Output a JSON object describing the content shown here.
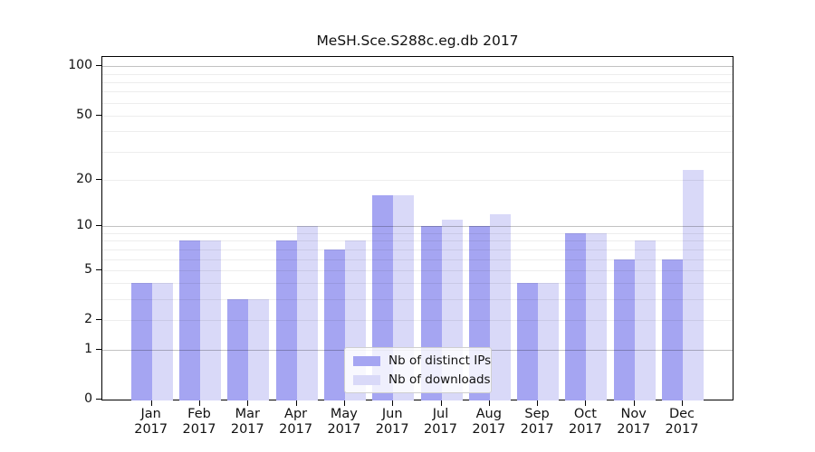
{
  "figure": {
    "title": "MeSH.Sce.S288c.eg.db 2017",
    "background_color": "#ffffff",
    "axis_color": "#000000"
  },
  "chart_data": {
    "type": "bar",
    "title": "MeSH.Sce.S288c.eg.db 2017",
    "categories": [
      "Jan",
      "Feb",
      "Mar",
      "Apr",
      "May",
      "Jun",
      "Jul",
      "Aug",
      "Sep",
      "Oct",
      "Nov",
      "Dec"
    ],
    "category_year": "2017",
    "series": [
      {
        "name": "Nb of distinct IPs",
        "color": "#a5a5f2",
        "values": [
          4,
          8,
          3,
          8,
          7,
          16,
          10,
          10,
          4,
          9,
          6,
          6
        ]
      },
      {
        "name": "Nb of downloads",
        "color": "#d9d9f8",
        "values": [
          4,
          8,
          3,
          10,
          8,
          16,
          11,
          12,
          4,
          9,
          8,
          23
        ]
      }
    ],
    "xlabel": "",
    "ylabel": "",
    "yscale": "log1p",
    "ylim": [
      0,
      105
    ],
    "yticks": [
      0,
      1,
      2,
      5,
      10,
      20,
      50,
      100
    ],
    "major_gridlines": [
      1,
      10,
      100
    ],
    "minor_gridlines": [
      2,
      3,
      4,
      5,
      6,
      7,
      8,
      9,
      20,
      30,
      40,
      50,
      60,
      70,
      80,
      90
    ],
    "grid": true,
    "legend_position": "lower center"
  }
}
